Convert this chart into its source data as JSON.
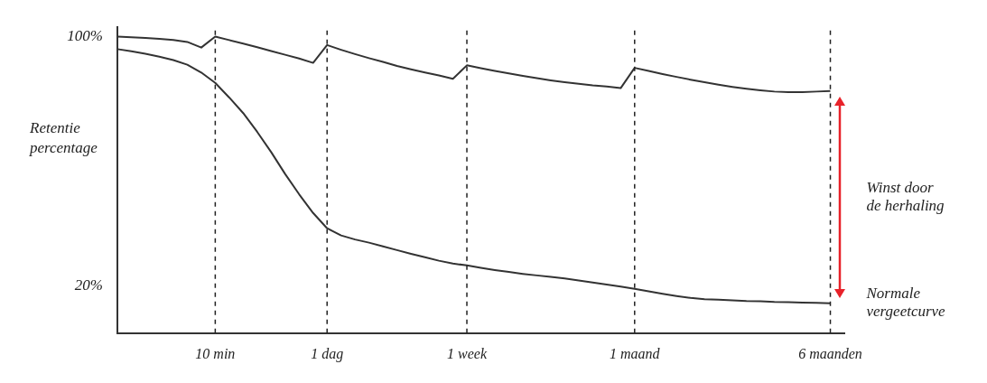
{
  "chart_data": {
    "type": "line",
    "ylabel": "Retentie percentage",
    "categories": [
      null,
      null,
      null,
      null,
      null,
      null,
      null,
      "10 min",
      null,
      null,
      null,
      null,
      null,
      null,
      null,
      "1 dag",
      null,
      null,
      null,
      null,
      null,
      null,
      null,
      null,
      null,
      "1 week",
      null,
      null,
      null,
      null,
      null,
      null,
      null,
      null,
      null,
      null,
      null,
      "1 maand",
      null,
      null,
      null,
      null,
      null,
      null,
      null,
      null,
      null,
      null,
      null,
      null,
      null,
      "6 maanden",
      null
    ],
    "ylim": [
      5,
      103
    ],
    "yticks": [
      {
        "value": 100,
        "label": "100%"
      },
      {
        "value": 20,
        "label": "20%"
      }
    ],
    "grid": false,
    "legend": false,
    "marker": "none",
    "line_style": "solid",
    "series": [
      {
        "color": "#333333",
        "values": [
          100,
          99.8,
          99.6,
          99.3,
          98.9,
          98.3,
          96.5,
          100,
          98.9,
          97.8,
          96.6,
          95.4,
          94.2,
          93,
          91.6,
          97.3,
          95.8,
          94.4,
          93.1,
          91.9,
          90.6,
          89.5,
          88.5,
          87.6,
          86.5,
          90.8,
          89.9,
          89,
          88.2,
          87.4,
          86.7,
          86,
          85.4,
          84.9,
          84.4,
          84,
          83.5,
          90,
          89,
          88,
          87.1,
          86.2,
          85.4,
          84.6,
          83.9,
          83.3,
          82.8,
          82.4,
          82.2,
          82.2,
          82.4,
          82.6,
          null
        ]
      },
      {
        "name": "Normale vergeetcurve",
        "color": "#333333",
        "values": [
          96,
          95.3,
          94.5,
          93.6,
          92.5,
          91,
          88.5,
          85.2,
          80.5,
          75.5,
          69.5,
          63,
          56,
          49.5,
          43.5,
          38.6,
          36.3,
          35,
          34,
          32.8,
          31.6,
          30.4,
          29.3,
          28.2,
          27.3,
          26.7,
          25.9,
          25.2,
          24.6,
          24,
          23.5,
          23,
          22.5,
          21.9,
          21.2,
          20.6,
          19.9,
          19.2,
          18.4,
          17.6,
          16.9,
          16.3,
          15.9,
          15.7,
          15.5,
          15.3,
          15.2,
          15,
          14.9,
          14.8,
          14.7,
          14.6,
          null
        ]
      }
    ],
    "ref_lines": [
      {
        "axis": "x",
        "value": "10 min",
        "line_style": "dashed",
        "color": "#222222"
      },
      {
        "axis": "x",
        "value": "1 dag",
        "line_style": "dashed",
        "color": "#222222"
      },
      {
        "axis": "x",
        "value": "1 week",
        "line_style": "dashed",
        "color": "#222222"
      },
      {
        "axis": "x",
        "value": "1 maand",
        "line_style": "dashed",
        "color": "#222222"
      },
      {
        "axis": "x",
        "value": "6 maanden",
        "line_style": "dashed",
        "color": "#222222"
      }
    ],
    "annotations": [
      "Winst door de herhaling"
    ]
  }
}
